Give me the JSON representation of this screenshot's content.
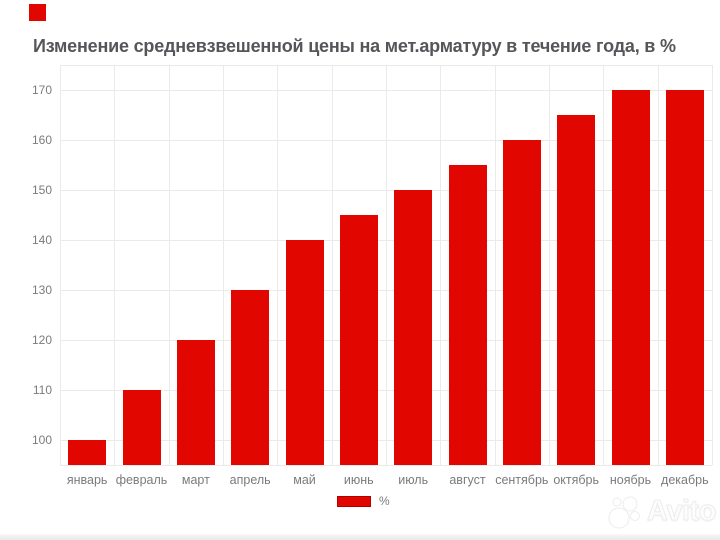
{
  "chart_data": {
    "type": "bar",
    "title": "Изменение средневзвешенной цены на мет.арматуру в течение года, в %",
    "categories": [
      "январь",
      "февраль",
      "март",
      "апрель",
      "май",
      "июнь",
      "июль",
      "август",
      "сентябрь",
      "октябрь",
      "ноябрь",
      "декабрь"
    ],
    "series": [
      {
        "name": "%",
        "values": [
          100,
          110,
          120,
          130,
          140,
          145,
          150,
          155,
          160,
          165,
          170,
          170
        ]
      }
    ],
    "xlabel": "",
    "ylabel": "",
    "ylim": [
      95,
      175
    ],
    "yticks": [
      100,
      110,
      120,
      130,
      140,
      150,
      160,
      170
    ],
    "grid": true,
    "legend_position": "bottom",
    "colors": {
      "bar_fill": "#e10600",
      "legend_swatch_border": "#b00000",
      "grid_line": "#eaeaea",
      "axis_text": "#7b7b7f",
      "title_text": "#56565a"
    }
  },
  "brand_marker": {
    "color": "#e10600"
  },
  "watermark": {
    "text": "Avito"
  }
}
